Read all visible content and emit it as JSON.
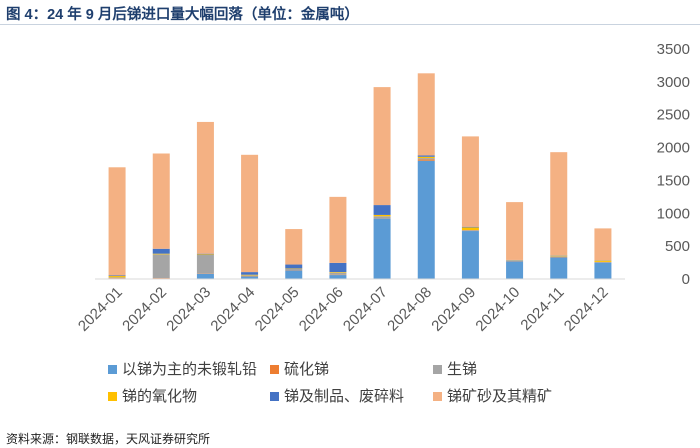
{
  "figure": {
    "title": "图 4：24 年 9 月后锑进口量大幅回落（单位：金属吨）",
    "source": "资料来源：钢联数据，天风证券研究所"
  },
  "chart_data": {
    "type": "bar",
    "stacked": true,
    "categories": [
      "2024-01",
      "2024-02",
      "2024-03",
      "2024-04",
      "2024-05",
      "2024-06",
      "2024-07",
      "2024-08",
      "2024-09",
      "2024-10",
      "2024-11",
      "2024-12"
    ],
    "ylim": [
      0,
      3500
    ],
    "yticks": [
      0,
      500,
      1000,
      1500,
      2000,
      2500,
      3000,
      3500
    ],
    "y_axis_position": "right",
    "grid": false,
    "legend_position": "bottom",
    "series": [
      {
        "name": "以锑为主的未锻轧铅",
        "color": "#5b9bd5",
        "values": [
          10,
          10,
          80,
          40,
          130,
          60,
          920,
          1800,
          730,
          270,
          330,
          250
        ]
      },
      {
        "name": "硫化锑",
        "color": "#ed7d31",
        "values": [
          5,
          5,
          5,
          5,
          5,
          5,
          5,
          20,
          5,
          5,
          5,
          5
        ]
      },
      {
        "name": "生锑",
        "color": "#a5a5a5",
        "values": [
          10,
          360,
          280,
          10,
          20,
          30,
          30,
          20,
          10,
          5,
          10,
          5
        ]
      },
      {
        "name": "锑的氧化物",
        "color": "#ffc000",
        "values": [
          20,
          10,
          10,
          10,
          5,
          10,
          20,
          20,
          40,
          5,
          10,
          20
        ]
      },
      {
        "name": "锑及制品、废碎料",
        "color": "#4472c4",
        "values": [
          10,
          75,
          10,
          40,
          60,
          140,
          150,
          20,
          10,
          5,
          5,
          5
        ]
      },
      {
        "name": "锑矿砂及其精矿",
        "color": "#f4b183",
        "values": [
          1645,
          1450,
          2005,
          1785,
          540,
          1005,
          1795,
          1250,
          1375,
          880,
          1570,
          485
        ]
      }
    ]
  }
}
